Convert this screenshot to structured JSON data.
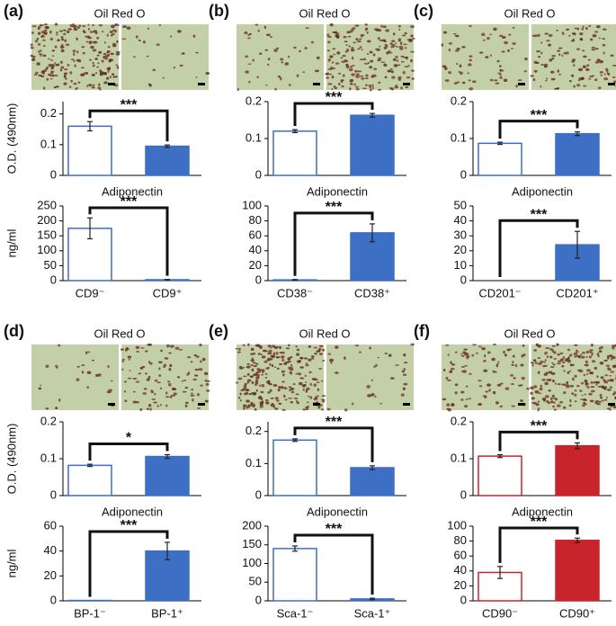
{
  "chart_data": [
    {
      "type": "bar",
      "panel": "(a)",
      "title": "Oil Red O",
      "ylabel": "O.D. (490nm)",
      "values": [
        0.16,
        0.095
      ],
      "errors": [
        0.015,
        0.004
      ],
      "colors": [
        "#ffffff",
        "#3d6fc4"
      ],
      "edgecolor": "#3d6fc4",
      "ylim": [
        0,
        0.24
      ],
      "yticks": [
        0,
        0.1,
        0.2
      ],
      "annotation": "***"
    },
    {
      "type": "bar",
      "title": "Adiponectin",
      "ylabel": "ng/ml",
      "categories": [
        "CD9⁻",
        "CD9⁺"
      ],
      "values": [
        175,
        3
      ],
      "errors": [
        35,
        1
      ],
      "colors": [
        "#ffffff",
        "#3d6fc4"
      ],
      "edgecolor": "#3d6fc4",
      "ylim": [
        0,
        250
      ],
      "yticks": [
        0,
        50,
        100,
        150,
        200,
        250
      ],
      "annotation": "***"
    },
    {
      "type": "bar",
      "panel": "(b)",
      "title": "Oil Red O",
      "values": [
        0.12,
        0.163
      ],
      "errors": [
        0.004,
        0.005
      ],
      "colors": [
        "#ffffff",
        "#3d6fc4"
      ],
      "edgecolor": "#3d6fc4",
      "ylim": [
        0,
        0.2
      ],
      "yticks": [
        0,
        0.1,
        0.2
      ],
      "annotation": "***"
    },
    {
      "type": "bar",
      "title": "Adiponectin",
      "categories": [
        "CD38⁻",
        "CD38⁺"
      ],
      "values": [
        1,
        64
      ],
      "errors": [
        0.5,
        12
      ],
      "colors": [
        "#ffffff",
        "#3d6fc4"
      ],
      "edgecolor": "#3d6fc4",
      "ylim": [
        0,
        100
      ],
      "yticks": [
        0,
        20,
        40,
        60,
        80,
        100
      ],
      "annotation": "***"
    },
    {
      "type": "bar",
      "panel": "(c)",
      "title": "Oil Red O",
      "values": [
        0.087,
        0.113
      ],
      "errors": [
        0.003,
        0.005
      ],
      "colors": [
        "#ffffff",
        "#3d6fc4"
      ],
      "edgecolor": "#3d6fc4",
      "ylim": [
        0,
        0.2
      ],
      "yticks": [
        0,
        0.1,
        0.2
      ],
      "annotation": "***"
    },
    {
      "type": "bar",
      "title": "Adiponectin",
      "categories": [
        "CD201⁻",
        "CD201⁺"
      ],
      "values": [
        0,
        24
      ],
      "errors": [
        0,
        9
      ],
      "colors": [
        "#ffffff",
        "#3d6fc4"
      ],
      "edgecolor": "#3d6fc4",
      "ylim": [
        0,
        50
      ],
      "yticks": [
        0,
        10,
        20,
        30,
        40,
        50
      ],
      "annotation": "***"
    },
    {
      "type": "bar",
      "panel": "(d)",
      "title": "Oil Red O",
      "ylabel": "O.D. (490nm)",
      "values": [
        0.082,
        0.106
      ],
      "errors": [
        0.003,
        0.005
      ],
      "colors": [
        "#ffffff",
        "#3d6fc4"
      ],
      "edgecolor": "#3d6fc4",
      "ylim": [
        0,
        0.2
      ],
      "yticks": [
        0,
        0.1,
        0.2
      ],
      "annotation": "*"
    },
    {
      "type": "bar",
      "title": "Adiponectin",
      "ylabel": "ng/ml",
      "categories": [
        "BP-1⁻",
        "BP-1⁺"
      ],
      "values": [
        0.3,
        40
      ],
      "errors": [
        0,
        7
      ],
      "colors": [
        "#ffffff",
        "#3d6fc4"
      ],
      "edgecolor": "#3d6fc4",
      "ylim": [
        0,
        60
      ],
      "yticks": [
        0,
        20,
        40,
        60
      ],
      "annotation": "***"
    },
    {
      "type": "bar",
      "panel": "(e)",
      "title": "Oil Red O",
      "values": [
        0.173,
        0.087
      ],
      "errors": [
        0.004,
        0.006
      ],
      "colors": [
        "#ffffff",
        "#3d6fc4"
      ],
      "edgecolor": "#3d6fc4",
      "ylim": [
        0,
        0.23
      ],
      "yticks": [
        0,
        0.1,
        0.2
      ],
      "annotation": "***"
    },
    {
      "type": "bar",
      "title": "Adiponectin",
      "categories": [
        "Sca-1⁻",
        "Sca-1⁺"
      ],
      "values": [
        140,
        5
      ],
      "errors": [
        7,
        2
      ],
      "colors": [
        "#ffffff",
        "#3d6fc4"
      ],
      "edgecolor": "#3d6fc4",
      "ylim": [
        0,
        200
      ],
      "yticks": [
        0,
        50,
        100,
        150,
        200
      ],
      "annotation": "***"
    },
    {
      "type": "bar",
      "panel": "(f)",
      "title": "Oil Red O",
      "values": [
        0.107,
        0.135
      ],
      "errors": [
        0.004,
        0.008
      ],
      "colors": [
        "#ffffff",
        "#c8242b"
      ],
      "edgecolor": "#c8242b",
      "ylim": [
        0,
        0.2
      ],
      "yticks": [
        0,
        0.1,
        0.2
      ],
      "annotation": "***"
    },
    {
      "type": "bar",
      "title": "Adiponectin",
      "categories": [
        "CD90⁻",
        "CD90⁺"
      ],
      "values": [
        38,
        81
      ],
      "errors": [
        8,
        3
      ],
      "colors": [
        "#ffffff",
        "#c8242b"
      ],
      "edgecolor": "#c8242b",
      "ylim": [
        0,
        100
      ],
      "yticks": [
        0,
        20,
        40,
        60,
        80,
        100
      ],
      "annotation": "***"
    }
  ]
}
